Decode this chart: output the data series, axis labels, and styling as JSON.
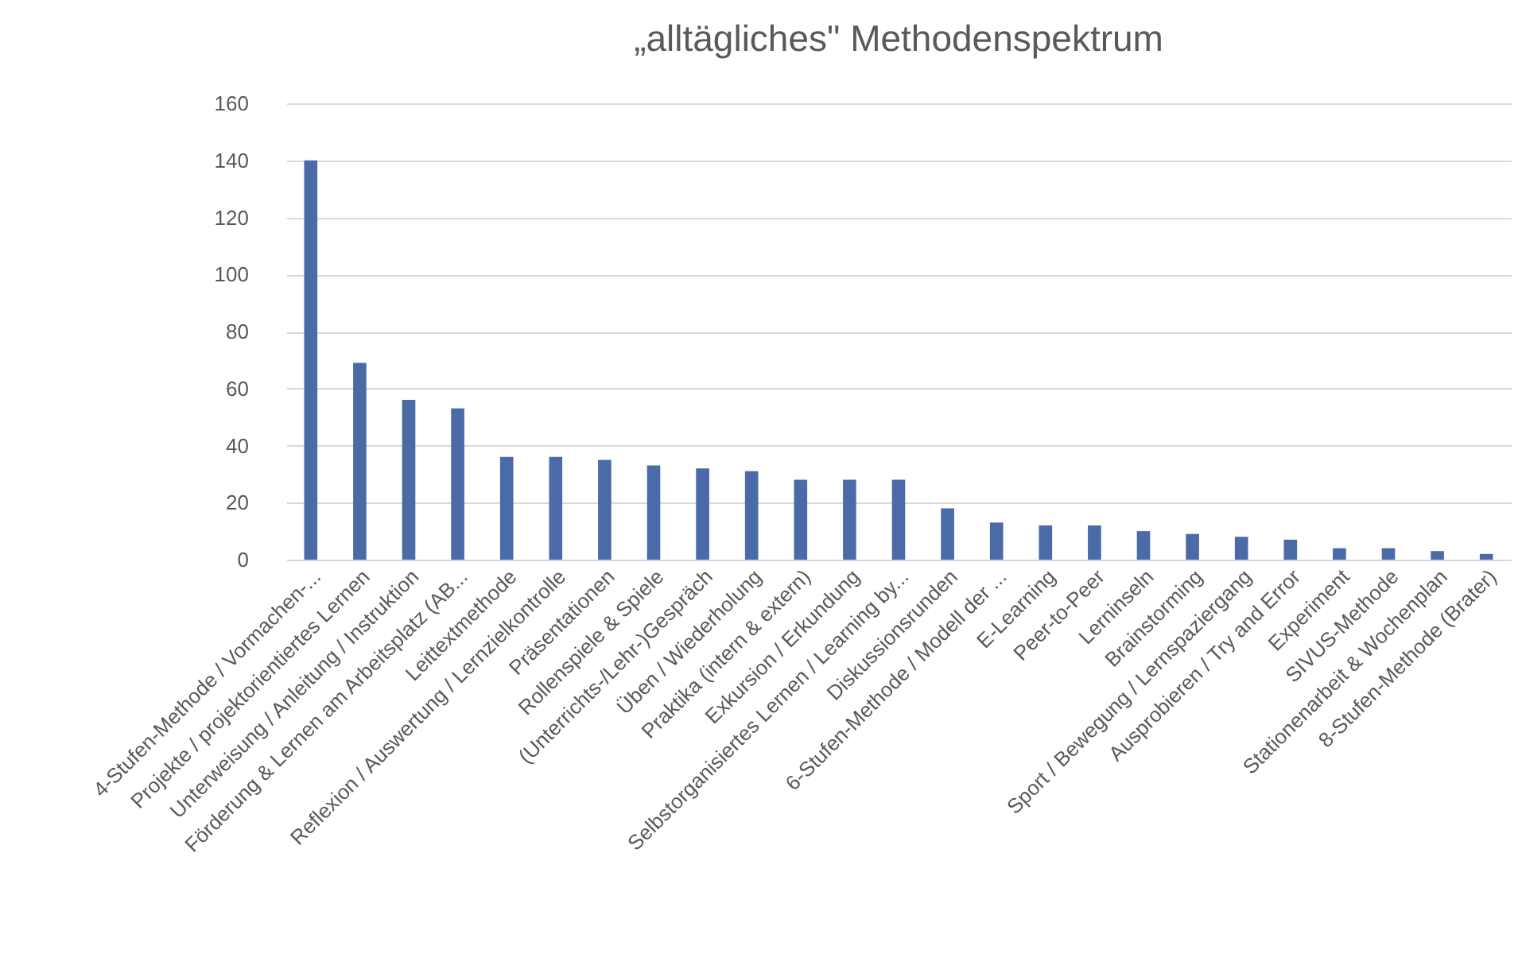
{
  "chart_data": {
    "type": "bar",
    "title": "„alltägliches\" Methodenspektrum",
    "categories": [
      "4-Stufen-Methode / Vormachen-...",
      "Projekte / projektorientiertes Lernen",
      "Unterweisung / Anleitung / Instruktion",
      "Förderung & Lernen am Arbeitsplatz (AB...",
      "Leittextmethode",
      "Reflexion / Auswertung / Lernzielkontrolle",
      "Präsentationen",
      "Rollenspiele & Spiele",
      "(Unterrichts-/Lehr-)Gespräch",
      "Üben / Wiederholung",
      "Praktika (intern & extern)",
      "Exkursion / Erkundung",
      "Selbstorganisiertes Lernen / Learning by...",
      "Diskussionsrunden",
      "6-Stufen-Methode / Modell der ...",
      "E-Learning",
      "Peer-to-Peer",
      "Lerninseln",
      "Brainstorming",
      "Sport / Bewegung / Lernspaziergang",
      "Ausprobieren / Try and Error",
      "Experiment",
      "SIVUS-Methode",
      "Stationenarbeit & Wochenplan",
      "8-Stufen-Methode (Brater)"
    ],
    "values": [
      140,
      69,
      56,
      53,
      36,
      36,
      35,
      33,
      32,
      31,
      28,
      28,
      28,
      18,
      13,
      12,
      12,
      10,
      9,
      8,
      7,
      4,
      4,
      3,
      2
    ],
    "color": "#4a6aa8",
    "ylim": [
      0,
      160
    ],
    "yticks": [
      0,
      20,
      40,
      60,
      80,
      100,
      120,
      140,
      160
    ],
    "grid": "y"
  }
}
